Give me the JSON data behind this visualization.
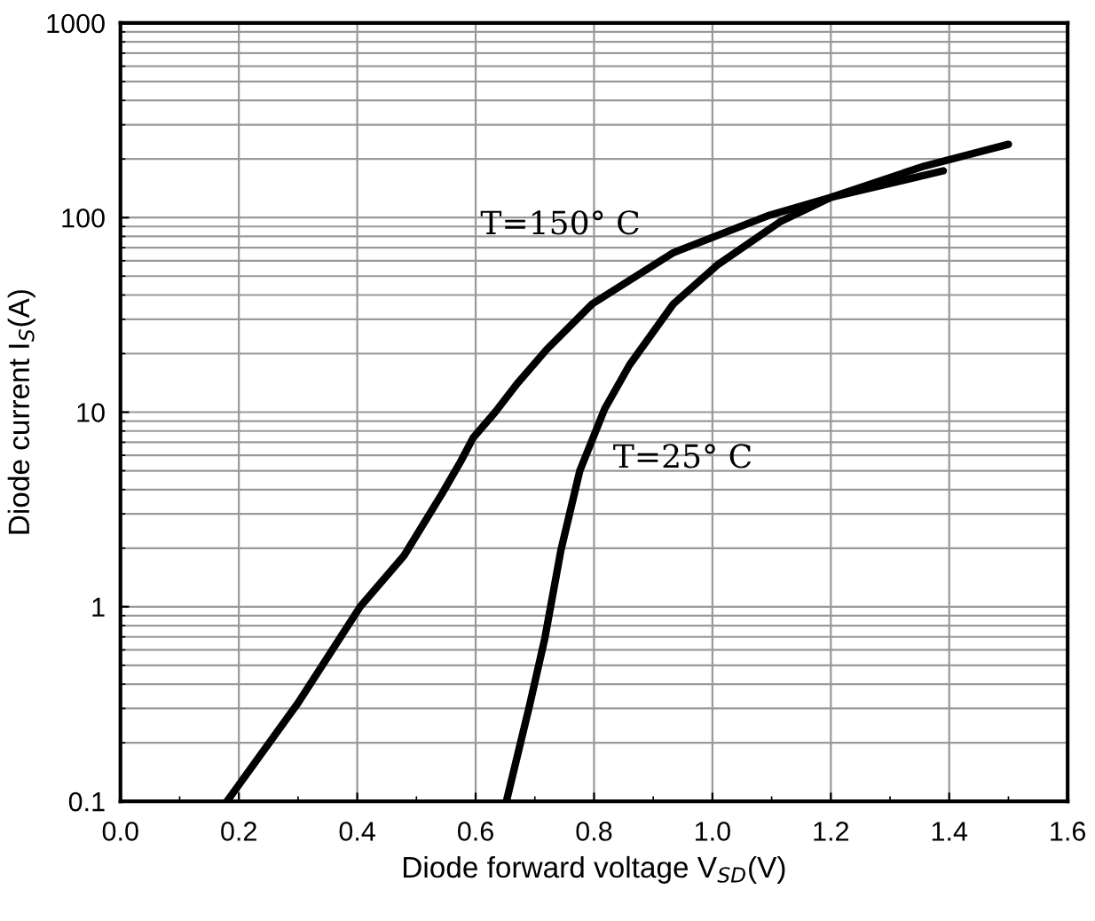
{
  "chart_data": {
    "type": "line",
    "xlabel": "Diode forward voltage V$_{SD}$(V)",
    "ylabel": "Diode current I$_{S}$(A)",
    "log": "y",
    "grid": true,
    "marker": "none",
    "line_style": "solid",
    "xlim": [
      0.0,
      1.6
    ],
    "xticks": [
      {
        "value": 0.0,
        "label": "0.0"
      },
      0.2,
      0.4,
      0.6,
      0.8,
      {
        "value": 1.0,
        "label": "1.0"
      },
      1.2,
      1.4,
      1.6
    ],
    "ylim": [
      0.1,
      1000
    ],
    "yticks": [
      0.1,
      1,
      10,
      100,
      1000
    ],
    "series": [
      {
        "color": "#000000",
        "x": [
          0.18,
          0.3,
          0.405,
          0.479,
          0.543,
          0.575,
          0.596,
          0.633,
          0.67,
          0.72,
          0.797,
          0.934,
          1.093,
          1.2,
          1.358,
          1.5
        ],
        "values": [
          0.1,
          0.32,
          1,
          1.83,
          3.8,
          5.6,
          7.4,
          10,
          14,
          21,
          36,
          66,
          102,
          127,
          184,
          238
        ]
      },
      {
        "color": "#000000",
        "x": [
          0.652,
          0.691,
          0.717,
          0.744,
          0.776,
          0.818,
          0.86,
          0.934,
          1.008,
          1.114,
          1.2,
          1.39
        ],
        "values": [
          0.1,
          0.31,
          0.69,
          1.95,
          5.0,
          10.4,
          17.5,
          36,
          57,
          95,
          127,
          174
        ]
      }
    ],
    "annotations": [
      "T=150° C",
      "T=25° C"
    ]
  }
}
